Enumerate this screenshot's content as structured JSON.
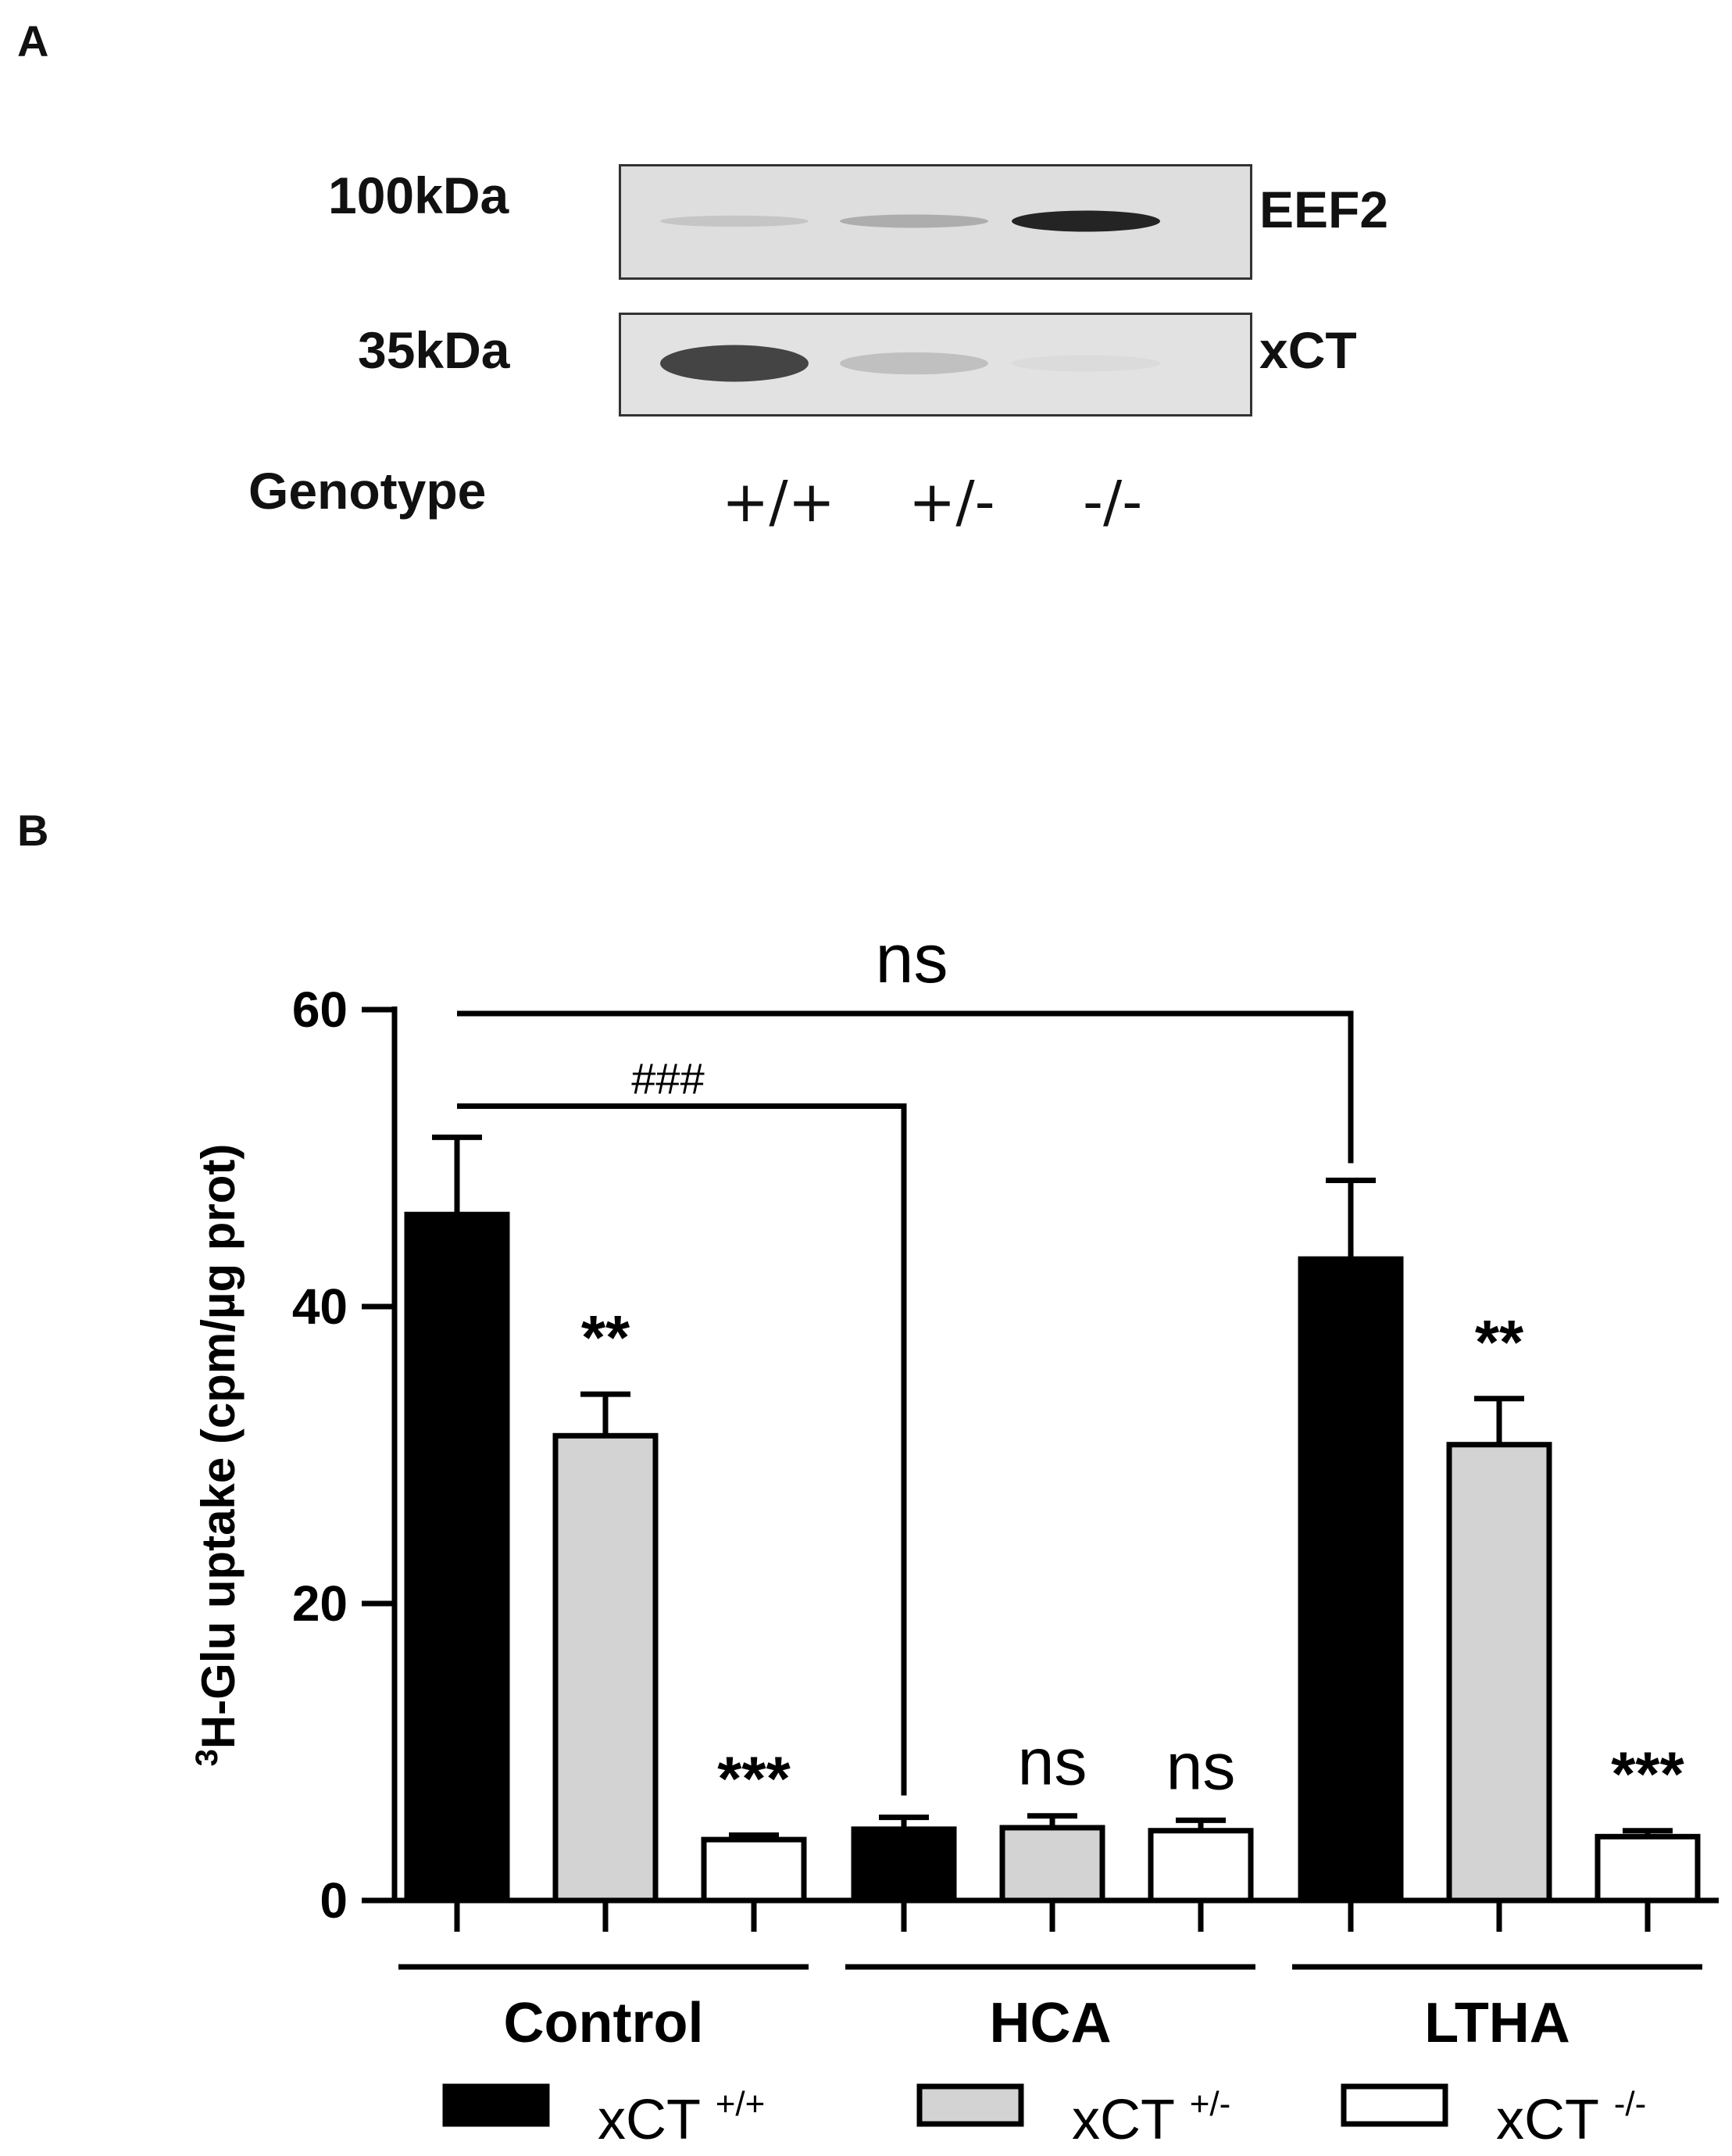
{
  "panel_a": {
    "letter": "A",
    "markers": {
      "top": "100kDa",
      "bottom": "35kDa"
    },
    "bands": {
      "top": "EEF2",
      "bottom": "xCT"
    },
    "genotype_label": "Genotype",
    "lanes": [
      "+/+",
      "+/-",
      "-/-"
    ],
    "eef2_intensity": [
      0.25,
      0.4,
      0.95
    ],
    "xct_intensity": [
      0.85,
      0.3,
      0.08
    ]
  },
  "panel_b": {
    "letter": "B"
  },
  "colors": {
    "xct_wt": "#000000",
    "xct_het": "#d3d3d3",
    "xct_ko": "#ffffff"
  },
  "chart_data": {
    "type": "bar",
    "ylabel_sup": "3",
    "ylabel": "H-Glu uptake (cpm/µg prot)",
    "ylim": [
      0,
      60
    ],
    "yticks": [
      0,
      20,
      40,
      60
    ],
    "groups": [
      "Control",
      "HCA",
      "LTHA"
    ],
    "series": [
      {
        "name": "xCT",
        "sup": "+/+",
        "values": [
          46.2,
          4.8,
          43.2
        ],
        "errors": [
          5.2,
          0.8,
          5.3
        ],
        "stars": [
          "",
          "",
          ""
        ]
      },
      {
        "name": "xCT",
        "sup": "+/-",
        "values": [
          31.3,
          4.9,
          30.7
        ],
        "errors": [
          2.8,
          0.8,
          3.1
        ],
        "stars": [
          "**",
          "ns",
          "**"
        ]
      },
      {
        "name": "xCT",
        "sup": "-/-",
        "values": [
          4.1,
          4.7,
          4.3
        ],
        "errors": [
          0.3,
          0.7,
          0.4
        ],
        "stars": [
          "***",
          "ns",
          "***"
        ]
      }
    ],
    "brackets": [
      {
        "from": "Control xCT +/+",
        "to": "LTHA xCT +/+",
        "label": "ns"
      },
      {
        "from": "Control xCT +/+",
        "to": "HCA xCT +/+",
        "label": "###"
      }
    ],
    "legend_placement": "bottom"
  }
}
